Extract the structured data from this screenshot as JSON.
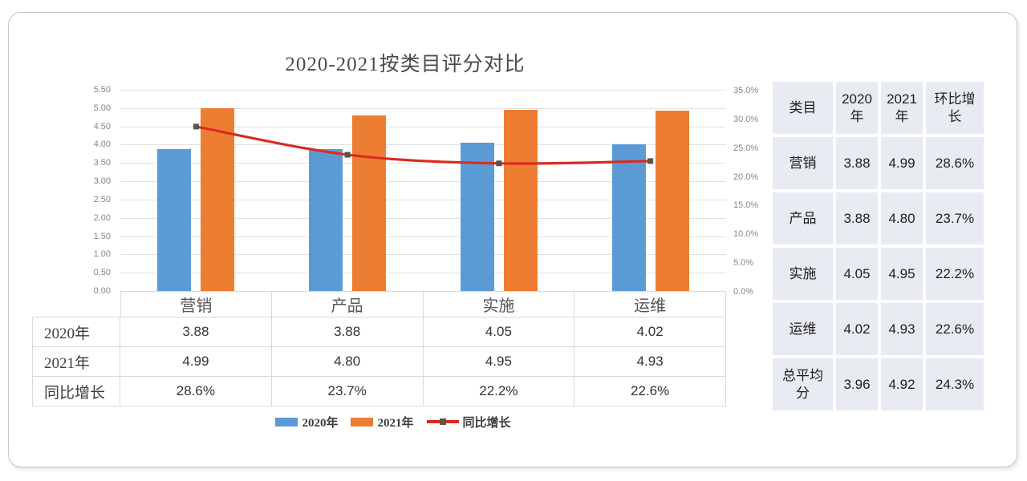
{
  "chart_data": {
    "type": "bar+line",
    "title": "2020-2021按类目评分对比",
    "categories": [
      "营销",
      "产品",
      "实施",
      "运维"
    ],
    "series": [
      {
        "name": "2020年",
        "type": "bar",
        "axis": "left",
        "color": "#5b9bd5",
        "values": [
          3.88,
          3.88,
          4.05,
          4.02
        ]
      },
      {
        "name": "2021年",
        "type": "bar",
        "axis": "left",
        "color": "#ed7d31",
        "values": [
          4.99,
          4.8,
          4.95,
          4.93
        ]
      },
      {
        "name": "同比增长",
        "type": "line",
        "axis": "right",
        "color": "#d92c20",
        "marker_color": "#56564b",
        "values": [
          28.6,
          23.7,
          22.2,
          22.6
        ],
        "values_text": [
          "28.6%",
          "23.7%",
          "22.2%",
          "22.6%"
        ]
      }
    ],
    "left_axis": {
      "min": 0,
      "max": 5.5,
      "step": 0.5,
      "ticks": [
        "5.50",
        "5.00",
        "4.50",
        "4.00",
        "3.50",
        "3.00",
        "2.50",
        "2.00",
        "1.50",
        "1.00",
        "0.50",
        "0.00"
      ]
    },
    "right_axis": {
      "min": 0,
      "max": 35,
      "step": 5,
      "ticks": [
        "35.0%",
        "30.0%",
        "25.0%",
        "20.0%",
        "15.0%",
        "10.0%",
        "5.0%",
        "0.0%"
      ]
    },
    "grid": true,
    "legend_position": "bottom",
    "legend": {
      "items": [
        {
          "label": "2020年",
          "swatch": "bar",
          "color": "#5b9bd5"
        },
        {
          "label": "2021年",
          "swatch": "bar",
          "color": "#ed7d31"
        },
        {
          "label": "同比增长",
          "swatch": "line",
          "color": "#d92c20"
        }
      ]
    },
    "data_table": {
      "row_headers": [
        "2020年",
        "2021年",
        "同比增长"
      ],
      "rows": [
        [
          "3.88",
          "3.88",
          "4.05",
          "4.02"
        ],
        [
          "4.99",
          "4.80",
          "4.95",
          "4.93"
        ],
        [
          "28.6%",
          "23.7%",
          "22.2%",
          "22.6%"
        ]
      ]
    }
  },
  "summary_table": {
    "headers": [
      "类目",
      "2020年",
      "2021年",
      "环比增长"
    ],
    "rows": [
      [
        "营销",
        "3.88",
        "4.99",
        "28.6%"
      ],
      [
        "产品",
        "3.88",
        "4.80",
        "23.7%"
      ],
      [
        "实施",
        "4.05",
        "4.95",
        "22.2%"
      ],
      [
        "运维",
        "4.02",
        "4.93",
        "22.6%"
      ],
      [
        "总平均分",
        "3.96",
        "4.92",
        "24.3%"
      ]
    ]
  },
  "colors": {
    "bar_2020": "#5b9bd5",
    "bar_2021": "#ed7d31",
    "growth_line": "#d92c20",
    "line_marker": "#56564b",
    "gridline": "#dde2e8",
    "table_border": "#d9d9d9",
    "summary_cell_bg": "#e9ebf2",
    "axis_text": "#82878e"
  }
}
